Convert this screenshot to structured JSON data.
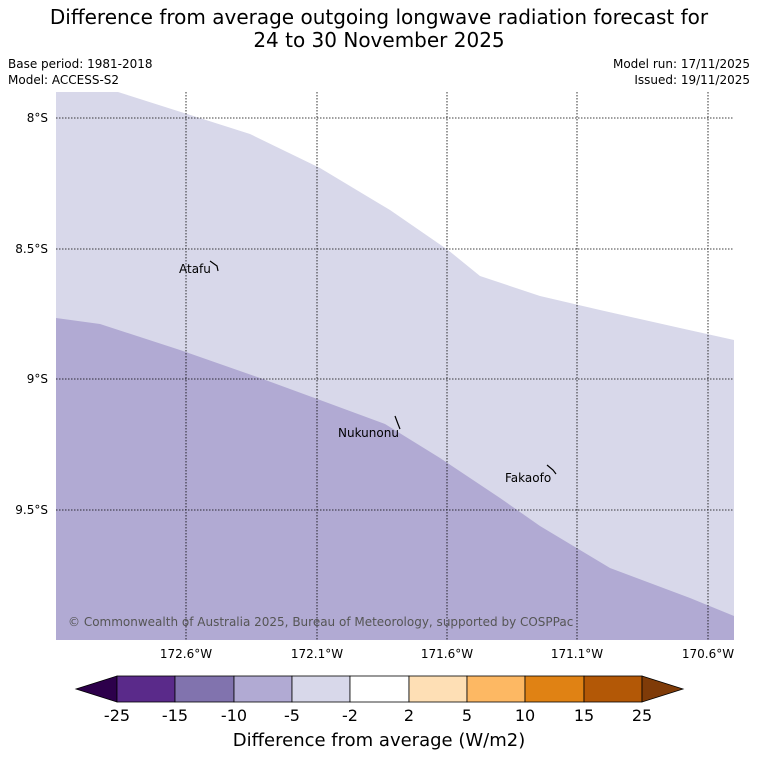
{
  "title_line1": "Difference from average outgoing longwave radiation forecast for",
  "title_line2": "24 to 30 November 2025",
  "base_period": "Base period: 1981-2018",
  "model": "Model: ACCESS-S2",
  "model_run": "Model run: 17/11/2025",
  "issued": "Issued: 19/11/2025",
  "map": {
    "latitude_labels": [
      "8°S",
      "8.5°S",
      "9°S",
      "9.5°S"
    ],
    "longitude_labels": [
      "172.6°W",
      "172.1°W",
      "171.6°W",
      "171.1°W",
      "170.6°W"
    ],
    "places": [
      {
        "name": "Atafu"
      },
      {
        "name": "Nukunonu"
      },
      {
        "name": "Fakaofo"
      }
    ],
    "copyright": "© Commonwealth of Australia 2025, Bureau of Meteorology, supported by COSPPac",
    "region_colors": {
      "light": "#d8d8ea",
      "medium": "#b1aad3",
      "background": "#ffffff"
    }
  },
  "colorbar": {
    "ticks": [
      "-25",
      "-15",
      "-10",
      "-5",
      "-2",
      "2",
      "5",
      "10",
      "15",
      "25"
    ],
    "colors": [
      "#2d004b",
      "#5a2a8a",
      "#8173ae",
      "#b1aad3",
      "#d8d8ea",
      "#ffffff",
      "#fedfb5",
      "#fdb863",
      "#e08214",
      "#b35806",
      "#7f3b08"
    ],
    "label": "Difference from average (W/m2)"
  }
}
